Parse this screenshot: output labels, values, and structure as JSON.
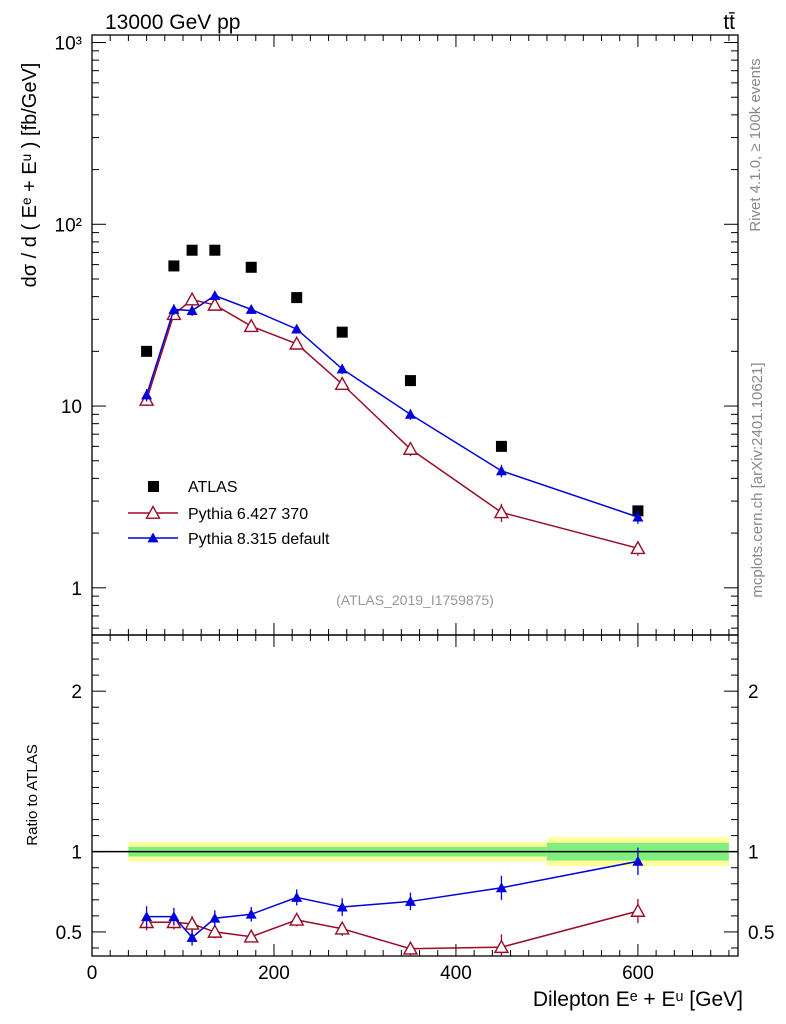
{
  "header": {
    "left": "13000 GeV pp",
    "right": "tt̄"
  },
  "side_labels": {
    "rivet": "Rivet 4.1.0, ≥ 100k events",
    "mcplots": "mcplots.cern.ch [arXiv:2401.10621]"
  },
  "analysis_id": "(ATLAS_2019_I1759875)",
  "colors": {
    "atlas": "#000000",
    "py6": "#990c25",
    "py8": "#0000dd",
    "band_inner": "#80ef80",
    "band_outer": "#ffff99"
  },
  "chart_data": [
    {
      "type": "scatter",
      "title": "",
      "xlabel": "Dilepton Eᵉ + Eᵘ [GeV]",
      "ylabel": "dσ / d ( Eᵉ + Eᵘ ) [fb/GeV]",
      "yscale": "log",
      "xlim": [
        0,
        710
      ],
      "ylim": [
        0.55,
        1100
      ],
      "y_ticks": [
        {
          "v": 1,
          "label": "1"
        },
        {
          "v": 10,
          "label": "10"
        },
        {
          "v": 100,
          "label": "10²"
        },
        {
          "v": 1000,
          "label": "10³"
        }
      ],
      "x": [
        60,
        90,
        110,
        135,
        175,
        225,
        275,
        350,
        450,
        600
      ],
      "series": [
        {
          "name": "ATLAS",
          "marker": "square",
          "line": false,
          "values": [
            20,
            59,
            72,
            72,
            58,
            39.5,
            25.5,
            13.8,
            6.0,
            2.65
          ],
          "err": [
            0.8,
            2,
            2.5,
            2.5,
            2,
            1.3,
            0.9,
            0.5,
            0.25,
            0.15
          ]
        },
        {
          "name": "Pythia 6.427 370",
          "marker": "triangle-open",
          "line": true,
          "values": [
            10.8,
            32,
            38.5,
            36,
            27.5,
            22,
            13.2,
            5.8,
            2.6,
            1.65
          ],
          "err": [
            0.8,
            2,
            2.5,
            2.2,
            1.6,
            1.3,
            0.8,
            0.5,
            0.3,
            0.15
          ]
        },
        {
          "name": "Pythia 8.315 default",
          "marker": "triangle",
          "line": true,
          "values": [
            11.5,
            34,
            33.5,
            40.5,
            34,
            26.5,
            16,
            9,
            4.4,
            2.45
          ],
          "err": [
            0.9,
            2.3,
            2.2,
            2.3,
            1.8,
            1.4,
            1,
            0.6,
            0.35,
            0.2
          ]
        }
      ],
      "legend": [
        "ATLAS",
        "Pythia 6.427 370",
        "Pythia 8.315 default"
      ],
      "legend_position": "bottom-left"
    },
    {
      "type": "scatter",
      "title": "",
      "xlabel": "Dilepton Eᵉ + Eᵘ [GeV]",
      "ylabel": "Ratio to ATLAS",
      "xlim": [
        0,
        710
      ],
      "ylim": [
        0.35,
        2.35
      ],
      "x_ticks": [
        0,
        200,
        400,
        600
      ],
      "y_ticks": [
        {
          "v": 0.5,
          "label": "0.5"
        },
        {
          "v": 1,
          "label": "1"
        },
        {
          "v": 2,
          "label": "2"
        }
      ],
      "x": [
        60,
        90,
        110,
        135,
        175,
        225,
        275,
        350,
        450,
        600
      ],
      "bands": [
        {
          "x0": 40,
          "x1": 500,
          "inner": 0.03,
          "outer": 0.06
        },
        {
          "x0": 500,
          "x1": 700,
          "inner": 0.055,
          "outer": 0.09
        }
      ],
      "series": [
        {
          "name": "Pythia 6.427 370",
          "marker": "triangle-open",
          "values": [
            0.56,
            0.56,
            0.55,
            0.5,
            0.47,
            0.575,
            0.52,
            0.395,
            0.405,
            0.63
          ],
          "err": [
            0.05,
            0.045,
            0.05,
            0.04,
            0.035,
            0.04,
            0.045,
            0.045,
            0.08,
            0.075
          ]
        },
        {
          "name": "Pythia 8.315 default",
          "marker": "triangle",
          "values": [
            0.595,
            0.595,
            0.465,
            0.585,
            0.61,
            0.715,
            0.655,
            0.69,
            0.775,
            0.94
          ],
          "err": [
            0.065,
            0.055,
            0.05,
            0.05,
            0.045,
            0.05,
            0.055,
            0.055,
            0.075,
            0.085
          ]
        }
      ]
    }
  ]
}
